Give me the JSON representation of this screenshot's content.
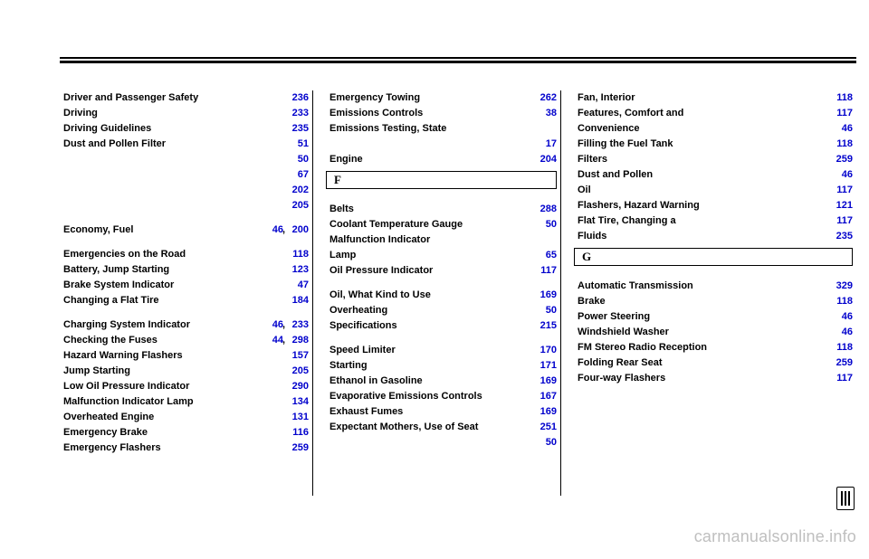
{
  "link_color": "#0000cc",
  "watermark": "carmanualsonline.info",
  "columns": [
    {
      "items": [
        {
          "text": "Driver and Passenger Safety",
          "p1": "236",
          "sub": true
        },
        {
          "text": "Driving",
          "p1": "233"
        },
        {
          "text": "Driving Guidelines",
          "p1": "235"
        },
        {
          "text": "Dust and Pollen Filter",
          "p1": "51"
        },
        {
          "text": "",
          "p1": "50",
          "sub": true
        },
        {
          "text": "",
          "p1": "67",
          "sub": true
        },
        {
          "text": "",
          "p1": "202",
          "sub": true
        },
        {
          "text": "",
          "p1": "205",
          "sub": true
        },
        {
          "type": "spacer"
        },
        {
          "text": "Economy, Fuel",
          "p1": "200",
          "p2": "46"
        },
        {
          "type": "spacer"
        },
        {
          "text": "Emergencies on the Road",
          "p1": "118"
        },
        {
          "text": "Battery, Jump Starting",
          "p1": "123",
          "sub": true
        },
        {
          "text": "Brake System Indicator",
          "p1": "47",
          "sub": true
        },
        {
          "text": "Changing a Flat Tire",
          "p1": "184",
          "sub": true
        },
        {
          "type": "spacer"
        },
        {
          "text": "Charging System Indicator",
          "p1": "233",
          "p2": "46",
          "sub": true
        },
        {
          "text": "Checking the Fuses",
          "p1": "298",
          "p2": "44",
          "sub": true
        },
        {
          "text": "Hazard Warning Flashers",
          "p1": "157",
          "sub": true
        },
        {
          "text": "Jump Starting",
          "p1": "205",
          "sub": true
        },
        {
          "text": "Low Oil Pressure Indicator",
          "p1": "290",
          "sub": true
        },
        {
          "text": "Malfunction Indicator Lamp",
          "p1": "134",
          "sub": true
        },
        {
          "text": "Overheated Engine",
          "p1": "131",
          "sub": true
        },
        {
          "text": "Emergency Brake",
          "p1": "116"
        },
        {
          "text": "Emergency Flashers",
          "p1": "259"
        }
      ]
    },
    {
      "items": [
        {
          "text": "Emergency Towing",
          "p1": "262"
        },
        {
          "text": "Emissions Controls",
          "p1": "38"
        },
        {
          "text": "Emissions Testing, State",
          "sub": true
        },
        {
          "text": "",
          "p1": "17",
          "sub": true
        },
        {
          "text": "Engine",
          "p1": "204"
        },
        {
          "type": "section",
          "label": "F"
        },
        {
          "type": "spacer"
        },
        {
          "text": "Belts",
          "p1": "288",
          "sub": true
        },
        {
          "text": "Coolant Temperature Gauge",
          "p1": "50",
          "sub": true
        },
        {
          "text": "Malfunction Indicator",
          "sub": true
        },
        {
          "text": "Lamp",
          "p1": "65",
          "sub": true
        },
        {
          "text": "Oil Pressure Indicator",
          "p1": "117",
          "sub": true
        },
        {
          "type": "spacer"
        },
        {
          "text": "Oil, What Kind to Use",
          "p1": "169",
          "sub": true
        },
        {
          "text": "Overheating",
          "p1": "50",
          "sub": true
        },
        {
          "text": "Specifications",
          "p1": "215",
          "sub": true
        },
        {
          "type": "spacer"
        },
        {
          "text": "Speed Limiter",
          "p1": "170",
          "sub": true
        },
        {
          "text": "Starting",
          "p1": "171",
          "sub": true
        },
        {
          "text": "Ethanol in Gasoline",
          "p1": "169"
        },
        {
          "text": "Evaporative Emissions Controls",
          "p1": "167"
        },
        {
          "text": "Exhaust Fumes",
          "p1": "169"
        },
        {
          "text": "Expectant Mothers, Use of Seat",
          "p1": "251"
        },
        {
          "text": "",
          "p1": "50",
          "sub": true
        }
      ]
    },
    {
      "items": [
        {
          "text": "Fan, Interior",
          "p1": "118"
        },
        {
          "text": "Features, Comfort and",
          "p1": "117"
        },
        {
          "text": "Convenience",
          "p1": "46",
          "sub": true
        },
        {
          "text": "Filling the Fuel Tank",
          "p1": "118"
        },
        {
          "text": "Filters",
          "p1": "259"
        },
        {
          "text": "Dust and Pollen",
          "p1": "46",
          "sub": true
        },
        {
          "text": "Oil",
          "p1": "117",
          "sub": true
        },
        {
          "text": "Flashers, Hazard Warning",
          "p1": "121"
        },
        {
          "text": "Flat Tire, Changing a",
          "p1": "117"
        },
        {
          "text": "Fluids",
          "p1": "235"
        },
        {
          "type": "section",
          "label": "G"
        },
        {
          "type": "spacer"
        },
        {
          "text": "Automatic Transmission",
          "p1": "329",
          "sub": true
        },
        {
          "text": "Brake",
          "p1": "118",
          "sub": true
        },
        {
          "text": "Power Steering",
          "p1": "46",
          "sub": true
        },
        {
          "text": "Windshield Washer",
          "p1": "46",
          "sub": true
        },
        {
          "text": "FM Stereo Radio Reception",
          "p1": "118"
        },
        {
          "text": "Folding Rear Seat",
          "p1": "259"
        },
        {
          "text": "Four-way Flashers",
          "p1": "117"
        }
      ]
    }
  ]
}
